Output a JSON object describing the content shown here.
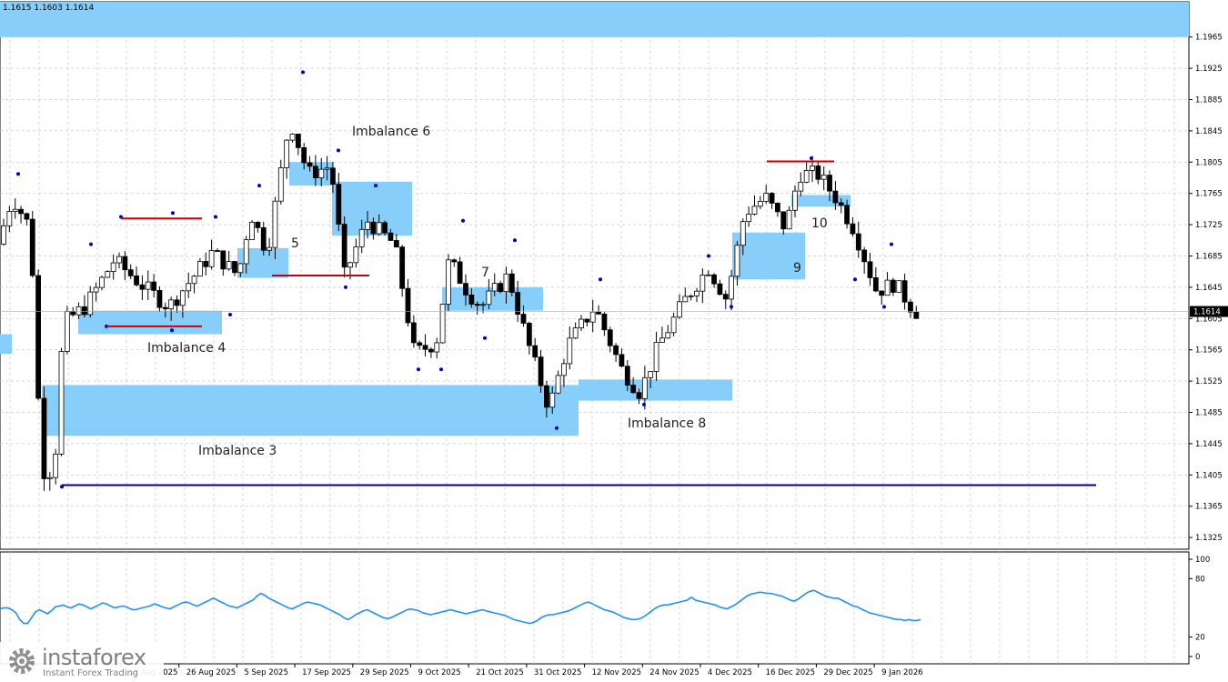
{
  "header": {
    "ohlc_readout": "1.1615 1.1603 1.1614"
  },
  "brand": {
    "name": "instaforex",
    "tagline": "Instant Forex Trading"
  },
  "colors": {
    "background": "#ffffff",
    "zone": "#87cefa",
    "candle": "#000000",
    "fractal": "#0000cd",
    "level_red": "#cc0000",
    "level_blue": "#00008b",
    "indicator": "#1e90ff",
    "grid": "#c8c8c8"
  },
  "price_axis": {
    "ticks": [
      "1.1965",
      "1.1925",
      "1.1885",
      "1.1845",
      "1.1805",
      "1.1765",
      "1.1725",
      "1.1685",
      "1.1645",
      "1.1605",
      "1.1565",
      "1.1525",
      "1.1485",
      "1.1445",
      "1.1405",
      "1.1365",
      "1.1325"
    ],
    "current_price": "1.1614"
  },
  "indicator_axis": {
    "ticks": [
      "100",
      "80",
      "20",
      "0"
    ]
  },
  "time_axis": {
    "labels": [
      "14 Aug 2025",
      "26 Aug 2025",
      "5 Sep 2025",
      "17 Sep 2025",
      "29 Sep 2025",
      "9 Oct 2025",
      "21 Oct 2025",
      "31 Oct 2025",
      "12 Nov 2025",
      "24 Nov 2025",
      "4 Dec 2025",
      "16 Dec 2025",
      "29 Dec 2025",
      "9 Jan 2026"
    ]
  },
  "annotations": {
    "imb3": "Imbalance 3",
    "imb4": "Imbalance 4",
    "imb5": "5",
    "imb6": "Imbalance 6",
    "imb7": "7",
    "imb8": "Imbalance 8",
    "imb9": "9",
    "imb10": "10"
  },
  "chart_data": [
    {
      "type": "candlestick",
      "title": "",
      "ylim": [
        1.131,
        1.201
      ],
      "x_range": [
        "14 Aug 2025",
        "9 Jan 2026"
      ],
      "last_close": 1.1614,
      "price_readout": {
        "values": [
          1.1615,
          1.1603,
          1.1614
        ]
      },
      "imbalance_zones": [
        {
          "label": "Imbalance 3",
          "y": [
            1.1455,
            1.152
          ]
        },
        {
          "label": "Imbalance 4",
          "y": [
            1.1585,
            1.1615
          ]
        },
        {
          "label": "5",
          "y": [
            1.1657,
            1.1695
          ]
        },
        {
          "label": "Imbalance 6",
          "y": [
            1.1711,
            1.178
          ]
        },
        {
          "label": "7",
          "y": [
            1.1615,
            1.1645
          ]
        },
        {
          "label": "Imbalance 8",
          "y": [
            1.15,
            1.1527
          ]
        },
        {
          "label": "9",
          "y": [
            1.1655,
            1.1715
          ]
        },
        {
          "label": "10",
          "y": [
            1.1748,
            1.1763
          ]
        }
      ],
      "levels": [
        {
          "color": "red",
          "y": 1.1733
        },
        {
          "color": "red",
          "y": 1.1595
        },
        {
          "color": "red",
          "y": 1.166
        },
        {
          "color": "red",
          "y": 1.1806
        },
        {
          "color": "blue",
          "y": 1.1392
        }
      ],
      "grid": true
    },
    {
      "type": "line",
      "title": "",
      "ylim": [
        0,
        100
      ],
      "yticks": [
        100,
        80,
        20,
        0
      ],
      "series": [
        {
          "values": [
            49,
            50,
            50,
            48,
            45,
            38,
            34,
            34,
            40,
            46,
            48,
            46,
            44,
            47,
            51,
            52,
            53,
            51,
            50,
            52,
            54,
            53,
            51,
            49,
            51,
            53,
            55,
            54,
            52,
            50,
            51,
            52,
            51,
            49,
            48,
            49,
            50,
            51,
            52,
            54,
            53,
            51,
            50,
            49,
            51,
            53,
            55,
            56,
            55,
            53,
            52,
            54,
            56,
            58,
            60,
            58,
            56,
            54,
            52,
            51,
            50,
            52,
            54,
            56,
            58,
            62,
            65,
            63,
            60,
            58,
            56,
            54,
            52,
            50,
            49,
            51,
            53,
            55,
            56,
            55,
            54,
            53,
            51,
            49,
            47,
            45,
            43,
            40,
            38,
            40,
            43,
            45,
            47,
            48,
            46,
            44,
            42,
            40,
            39,
            40,
            42,
            44,
            46,
            48,
            49,
            48,
            47,
            45,
            44,
            43,
            44,
            45,
            46,
            47,
            48,
            47,
            46,
            45,
            44,
            45,
            46,
            47,
            48,
            47,
            46,
            45,
            44,
            43,
            42,
            40,
            38,
            37,
            36,
            35,
            34,
            35,
            37,
            40,
            42,
            43,
            43,
            44,
            45,
            46,
            47,
            49,
            51,
            53,
            55,
            56,
            54,
            52,
            50,
            48,
            47,
            46,
            44,
            42,
            40,
            39,
            38,
            38,
            39,
            41,
            44,
            47,
            50,
            52,
            53,
            53,
            54,
            55,
            56,
            57,
            58,
            61,
            58,
            57,
            56,
            55,
            54,
            53,
            51,
            50,
            49,
            51,
            53,
            56,
            59,
            62,
            64,
            65,
            66,
            66,
            65,
            65,
            64,
            63,
            62,
            60,
            58,
            57,
            59,
            62,
            65,
            67,
            68,
            66,
            64,
            62,
            61,
            60,
            60,
            58,
            56,
            54,
            52,
            51,
            49,
            47,
            45,
            44,
            43,
            42,
            41,
            40,
            39,
            38,
            38,
            37,
            38,
            37,
            37,
            38
          ]
        }
      ],
      "grid": true
    }
  ]
}
